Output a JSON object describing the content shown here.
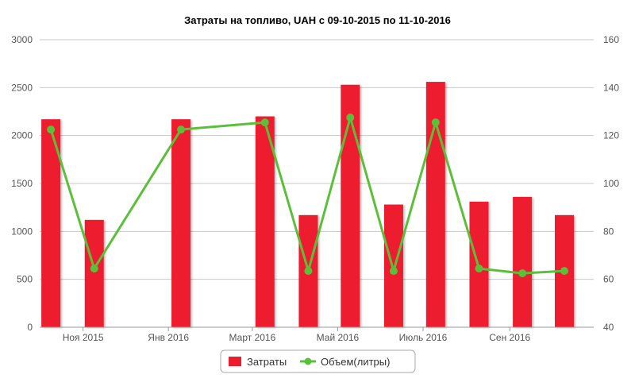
{
  "chart_data": {
    "type": "bar",
    "title": "Затраты на топливо, UAH с 09-10-2015 по 11-10-2016",
    "x_tick_labels": [
      "Ноя 2015",
      "Янв 2016",
      "Март 2016",
      "Май 2016",
      "Июль 2016",
      "Сен 2016"
    ],
    "y_left": {
      "ylim": [
        0,
        3000
      ],
      "ticks": [
        "0",
        "500",
        "1000",
        "1500",
        "2000",
        "2500",
        "3000"
      ]
    },
    "y_right": {
      "ylim": [
        40,
        160
      ],
      "ticks": [
        "40",
        "60",
        "80",
        "100",
        "120",
        "140",
        "160"
      ]
    },
    "x_domain": [
      "2015-10-01",
      "2016-10-31"
    ],
    "series": [
      {
        "name": "Затраты",
        "kind": "bar",
        "axis": "left",
        "color": "#ed1c2e",
        "points": [
          {
            "x": "2015-10-09",
            "y": 2170
          },
          {
            "x": "2015-11-09",
            "y": 1120
          },
          {
            "x": "2016-01-10",
            "y": 2170
          },
          {
            "x": "2016-03-10",
            "y": 2200
          },
          {
            "x": "2016-04-10",
            "y": 1170
          },
          {
            "x": "2016-05-10",
            "y": 2530
          },
          {
            "x": "2016-06-10",
            "y": 1280
          },
          {
            "x": "2016-07-10",
            "y": 2560
          },
          {
            "x": "2016-08-10",
            "y": 1310
          },
          {
            "x": "2016-09-10",
            "y": 1360
          },
          {
            "x": "2016-10-10",
            "y": 1170
          }
        ]
      },
      {
        "name": "Объем(литры)",
        "kind": "line",
        "axis": "right",
        "color": "#5cbf3a",
        "points": [
          {
            "x": "2015-10-09",
            "y": 122.5
          },
          {
            "x": "2015-11-09",
            "y": 64.5
          },
          {
            "x": "2016-01-10",
            "y": 122.5
          },
          {
            "x": "2016-03-10",
            "y": 125.5
          },
          {
            "x": "2016-04-10",
            "y": 63.5
          },
          {
            "x": "2016-05-10",
            "y": 127.5
          },
          {
            "x": "2016-06-10",
            "y": 63.5
          },
          {
            "x": "2016-07-10",
            "y": 125.5
          },
          {
            "x": "2016-08-10",
            "y": 64.5
          },
          {
            "x": "2016-09-10",
            "y": 62.5
          },
          {
            "x": "2016-10-10",
            "y": 63.5
          }
        ]
      }
    ],
    "legend": {
      "position": "bottom-center",
      "items": [
        "Затраты",
        "Объем(литры)"
      ]
    },
    "grid": true
  }
}
